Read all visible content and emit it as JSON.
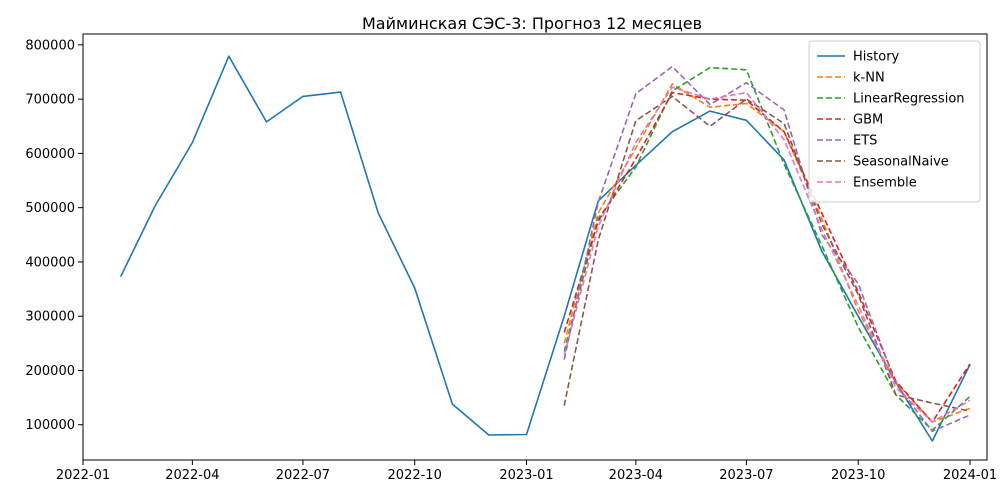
{
  "chart_data": {
    "type": "line",
    "title": "Майминская СЭС-3: Прогноз 12 месяцев",
    "xlabel": "",
    "ylabel": "",
    "x_range": [
      "2022-01-01",
      "2024-01-15"
    ],
    "ylim": [
      35000,
      820000
    ],
    "x_ticks": [
      "2022-01",
      "2022-04",
      "2022-07",
      "2022-10",
      "2023-01",
      "2023-04",
      "2023-07",
      "2023-10",
      "2024-01"
    ],
    "y_ticks": [
      100000,
      200000,
      300000,
      400000,
      500000,
      600000,
      700000,
      800000
    ],
    "grid": false,
    "legend_position": "top-right",
    "series": [
      {
        "name": "History",
        "style": "solid",
        "color": "#1f77b4",
        "x": [
          "2022-02-01",
          "2022-03-01",
          "2022-04-01",
          "2022-05-01",
          "2022-06-01",
          "2022-07-01",
          "2022-08-01",
          "2022-09-01",
          "2022-10-01",
          "2022-11-01",
          "2022-12-01",
          "2023-01-01",
          "2023-02-01",
          "2023-03-01",
          "2023-04-01",
          "2023-05-01",
          "2023-06-01",
          "2023-07-01",
          "2023-08-01",
          "2023-09-01",
          "2023-10-01",
          "2023-11-01",
          "2023-12-01",
          "2024-01-01"
        ],
        "y": [
          373000,
          502000,
          620000,
          779000,
          658000,
          705000,
          713000,
          490000,
          352000,
          138000,
          81000,
          82000,
          300000,
          512000,
          578000,
          640000,
          678000,
          661000,
          588000,
          420000,
          300000,
          178000,
          70000,
          211000
        ]
      },
      {
        "name": "k-NN",
        "style": "dashed",
        "color": "#ff7f0e",
        "x": [
          "2023-02-01",
          "2023-03-01",
          "2023-04-01",
          "2023-05-01",
          "2023-06-01",
          "2023-07-01",
          "2023-08-01",
          "2023-09-01",
          "2023-10-01",
          "2023-11-01",
          "2023-12-01",
          "2024-01-01"
        ],
        "y": [
          250000,
          490000,
          610000,
          728000,
          685000,
          692000,
          640000,
          480000,
          310000,
          178000,
          105000,
          130000
        ]
      },
      {
        "name": "LinearRegression",
        "style": "dashed",
        "color": "#2ca02c",
        "x": [
          "2023-02-01",
          "2023-03-01",
          "2023-04-01",
          "2023-05-01",
          "2023-06-01",
          "2023-07-01",
          "2023-08-01",
          "2023-09-01",
          "2023-10-01",
          "2023-11-01",
          "2023-12-01",
          "2024-01-01"
        ],
        "y": [
          235000,
          480000,
          575000,
          715000,
          758000,
          754000,
          580000,
          430000,
          280000,
          155000,
          90000,
          152000
        ]
      },
      {
        "name": "GBM",
        "style": "dashed",
        "color": "#d62728",
        "x": [
          "2023-02-01",
          "2023-03-01",
          "2023-04-01",
          "2023-05-01",
          "2023-06-01",
          "2023-07-01",
          "2023-08-01",
          "2023-09-01",
          "2023-10-01",
          "2023-11-01",
          "2023-12-01",
          "2024-01-01"
        ],
        "y": [
          270000,
          475000,
          590000,
          712000,
          700000,
          698000,
          640000,
          490000,
          345000,
          180000,
          105000,
          212000
        ]
      },
      {
        "name": "ETS",
        "style": "dashed",
        "color": "#9467bd",
        "x": [
          "2023-02-01",
          "2023-03-01",
          "2023-04-01",
          "2023-05-01",
          "2023-06-01",
          "2023-07-01",
          "2023-08-01",
          "2023-09-01",
          "2023-10-01",
          "2023-11-01",
          "2023-12-01",
          "2024-01-01"
        ],
        "y": [
          220000,
          510000,
          710000,
          760000,
          690000,
          730000,
          680000,
          450000,
          360000,
          175000,
          88000,
          118000
        ]
      },
      {
        "name": "SeasonalNaive",
        "style": "dashed",
        "color": "#8c564b",
        "x": [
          "2023-02-01",
          "2023-03-01",
          "2023-04-01",
          "2023-05-01",
          "2023-06-01",
          "2023-07-01",
          "2023-08-01",
          "2023-09-01",
          "2023-10-01",
          "2023-11-01",
          "2023-12-01",
          "2024-01-01"
        ],
        "y": [
          135000,
          440000,
          660000,
          705000,
          650000,
          700000,
          655000,
          470000,
          340000,
          155000,
          140000,
          125000
        ]
      },
      {
        "name": "Ensemble",
        "style": "dashed",
        "color": "#e377c2",
        "x": [
          "2023-02-01",
          "2023-03-01",
          "2023-04-01",
          "2023-05-01",
          "2023-06-01",
          "2023-07-01",
          "2023-08-01",
          "2023-09-01",
          "2023-10-01",
          "2023-11-01",
          "2023-12-01",
          "2024-01-01"
        ],
        "y": [
          228000,
          465000,
          620000,
          722000,
          700000,
          712000,
          625000,
          460000,
          320000,
          168000,
          105000,
          145000
        ]
      }
    ]
  }
}
